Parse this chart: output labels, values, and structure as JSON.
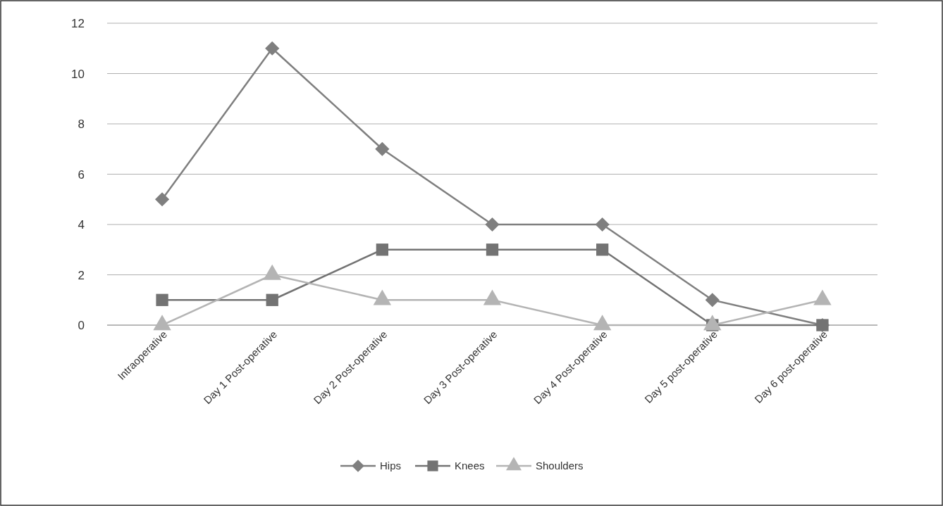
{
  "chart_data": {
    "type": "line",
    "categories": [
      "Intraoperative",
      "Day 1 Post-operative",
      "Day 2 Post-operative",
      "Day 3 Post-operative",
      "Day 4 Post-operative",
      "Day 5 post-operative",
      "Day 6 post-operative"
    ],
    "series": [
      {
        "name": "Hips",
        "color": "#7f7f7f",
        "marker": "diamond",
        "values": [
          5,
          11,
          7,
          4,
          4,
          1,
          0
        ]
      },
      {
        "name": "Knees",
        "color": "#737373",
        "marker": "square",
        "values": [
          1,
          1,
          3,
          3,
          3,
          0,
          0
        ]
      },
      {
        "name": "Shoulders",
        "color": "#b4b4b4",
        "marker": "triangle",
        "values": [
          0,
          2,
          1,
          1,
          0,
          0,
          1
        ]
      }
    ],
    "ylim": [
      0,
      12
    ],
    "yticks": [
      0,
      2,
      4,
      6,
      8,
      10,
      12
    ],
    "grid": "y",
    "legend": "bottom"
  }
}
